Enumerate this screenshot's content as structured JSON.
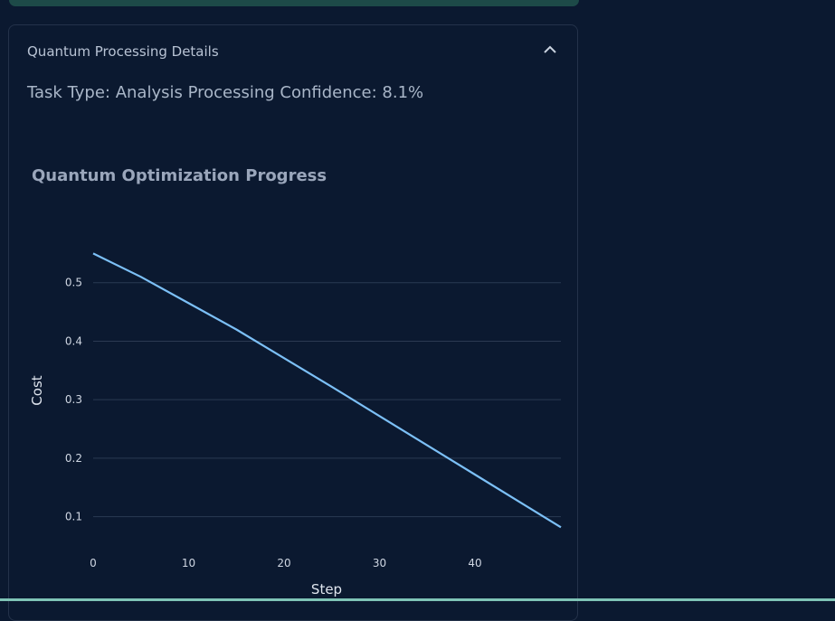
{
  "expander": {
    "header": "Quantum Processing Details",
    "task_line": "Task Type: Analysis Processing Confidence: 8.1%"
  },
  "chart_data": {
    "type": "line",
    "title": "Quantum Optimization Progress",
    "xlabel": "Step",
    "ylabel": "Cost",
    "xlim": [
      0,
      49
    ],
    "ylim": [
      0.05,
      0.6
    ],
    "x_ticks": [
      0,
      10,
      20,
      30,
      40
    ],
    "y_ticks": [
      0.1,
      0.2,
      0.3,
      0.4,
      0.5
    ],
    "grid": true,
    "line_color": "#7cc0f7",
    "series": [
      {
        "x": [
          0,
          5,
          10,
          15,
          20,
          25,
          30,
          35,
          40,
          45,
          49
        ],
        "values": [
          0.55,
          0.51,
          0.465,
          0.42,
          0.371,
          0.322,
          0.272,
          0.222,
          0.172,
          0.122,
          0.082
        ]
      }
    ]
  },
  "colors": {
    "background": "#0b1930",
    "banner": "#1d4a48",
    "grid": "#2b3a52"
  }
}
